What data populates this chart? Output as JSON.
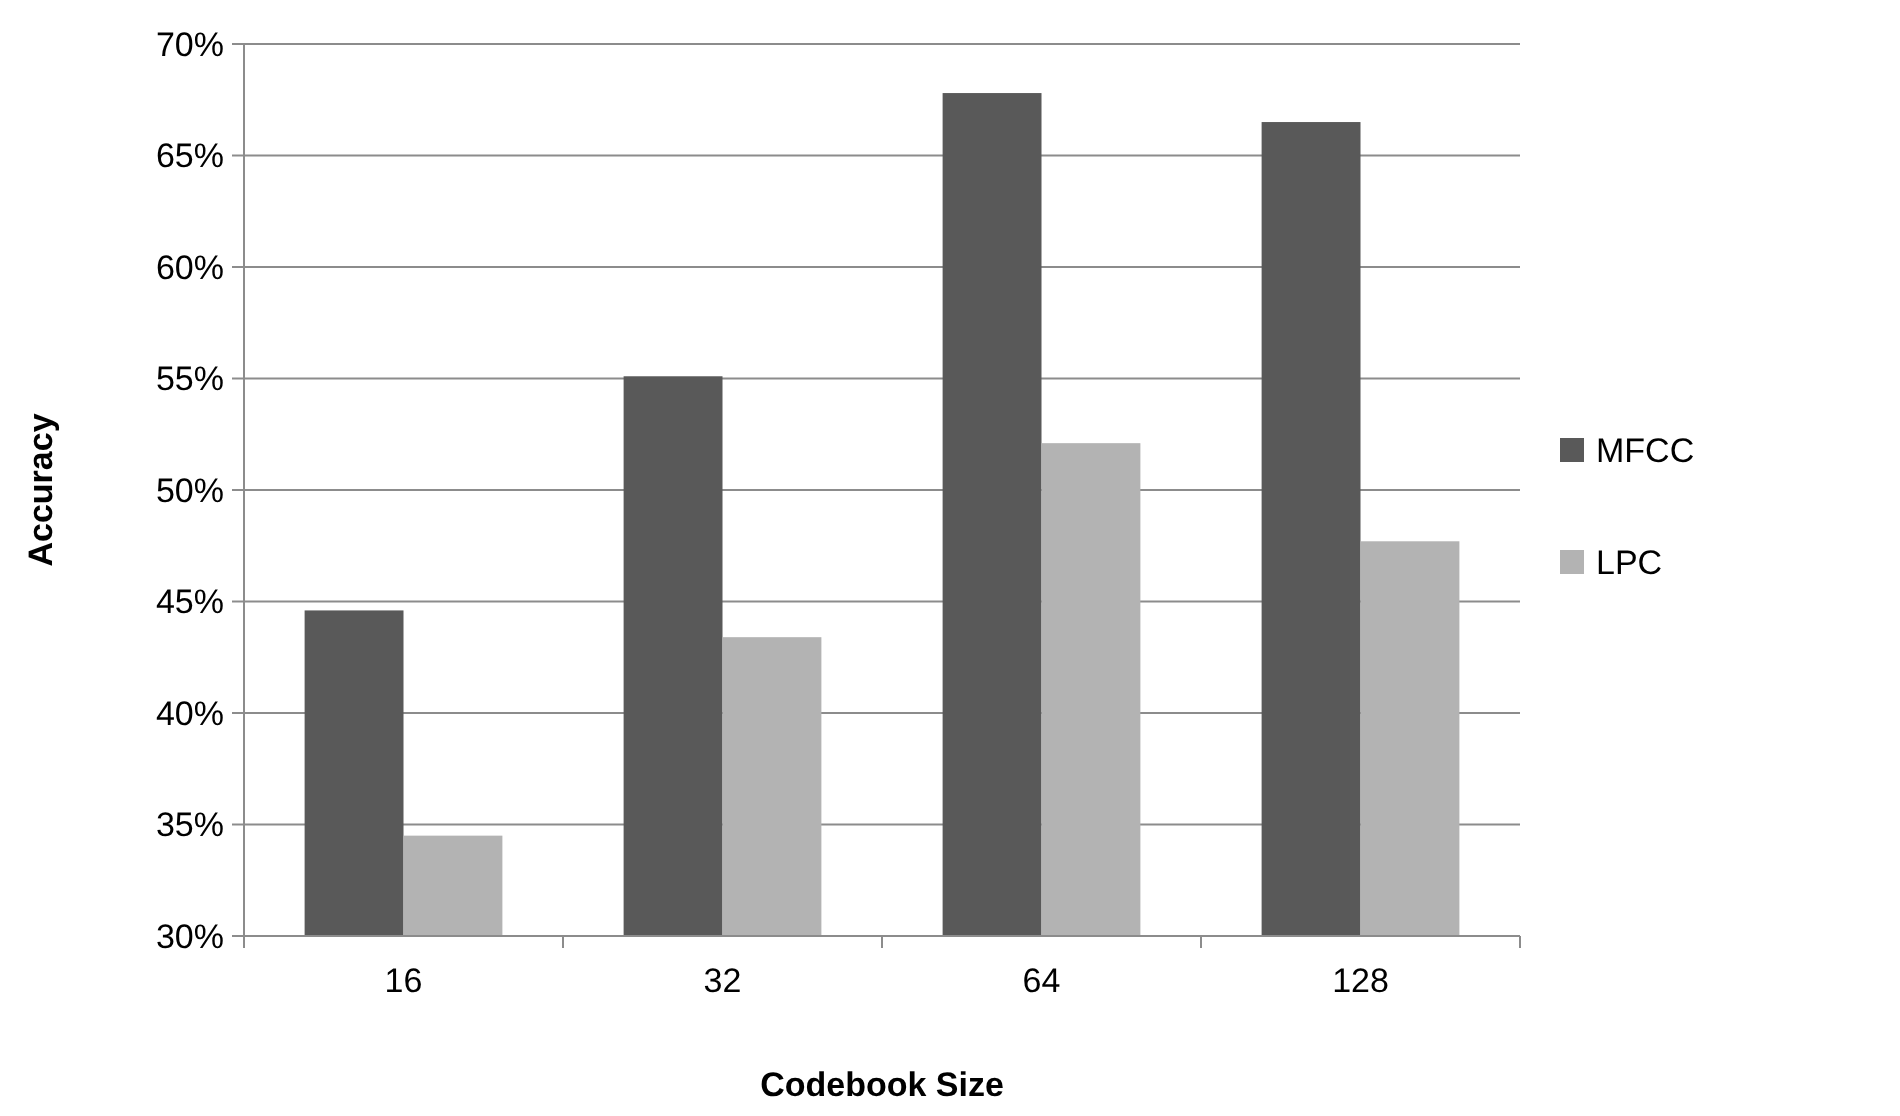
{
  "chart_data": {
    "type": "bar",
    "xlabel": "Codebook Size",
    "ylabel": "Accuracy",
    "categories": [
      "16",
      "32",
      "64",
      "128"
    ],
    "series": [
      {
        "name": "MFCC",
        "color": "#595959",
        "values": [
          44.6,
          55.1,
          67.8,
          66.5
        ]
      },
      {
        "name": "LPC",
        "color": "#b3b3b3",
        "values": [
          34.5,
          43.4,
          52.1,
          47.7
        ]
      }
    ],
    "ylim": [
      30,
      70
    ],
    "yticks": [
      {
        "value": 30,
        "label": "30%"
      },
      {
        "value": 35,
        "label": "35%"
      },
      {
        "value": 40,
        "label": "40%"
      },
      {
        "value": 45,
        "label": "45%"
      },
      {
        "value": 50,
        "label": "50%"
      },
      {
        "value": 55,
        "label": "55%"
      },
      {
        "value": 60,
        "label": "60%"
      },
      {
        "value": 65,
        "label": "65%"
      },
      {
        "value": 70,
        "label": "70%"
      }
    ],
    "grid": "y",
    "legend": "right"
  }
}
